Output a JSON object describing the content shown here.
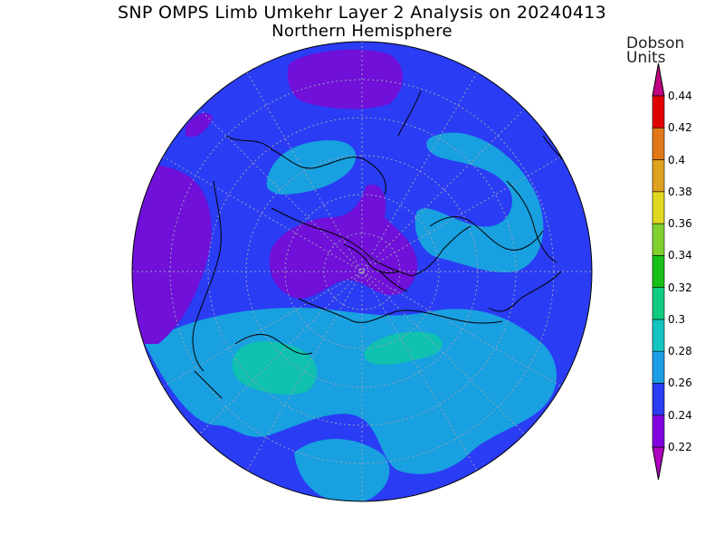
{
  "title": "SNP OMPS Limb Umkehr Layer 2 Analysis on 20240413",
  "subtitle": "Northern Hemisphere",
  "colorbar": {
    "units_line1": "Dobson",
    "units_line2": "Units",
    "levels": [
      "0.22",
      "0.24",
      "0.26",
      "0.28",
      "0.3",
      "0.32",
      "0.34",
      "0.36",
      "0.38",
      "0.4",
      "0.42",
      "0.44"
    ],
    "colors": [
      "#8000e0",
      "#2a3cf4",
      "#1e9ee6",
      "#14c4c0",
      "#10cc80",
      "#18c018",
      "#80d030",
      "#e0d820",
      "#e0a020",
      "#e07818",
      "#e00000"
    ],
    "under_color": "#b000c0",
    "over_color": "#c00080"
  },
  "map_colors": {
    "purple": "#7010d8",
    "magenta": "#a020b0",
    "blue": "#2a3cf4",
    "light_blue": "#18a0e0",
    "teal": "#10c0b0",
    "grid": "#9aa0b8",
    "coast": "#000000"
  }
}
